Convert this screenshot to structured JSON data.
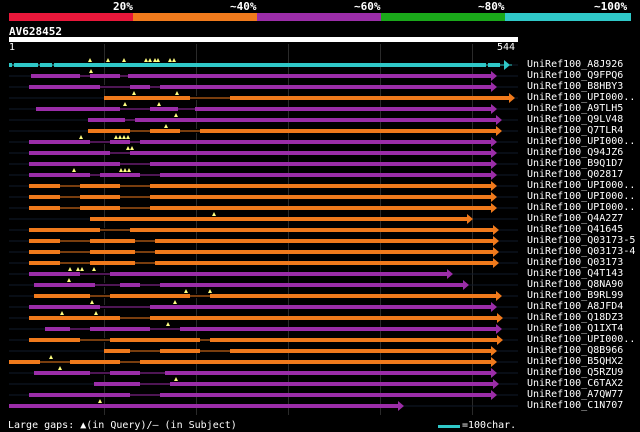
{
  "legend": {
    "labels": [
      "20%",
      "~40%",
      "~60%",
      "~80%",
      "~100%"
    ],
    "colors": [
      "#e8173a",
      "#f07a1c",
      "#9b2da8",
      "#1aa81a",
      "#2fc8c8"
    ]
  },
  "query": {
    "name": "AV628452",
    "start": "1",
    "end": "544"
  },
  "hits": [
    {
      "label": "UniRef100_A8J926",
      "color": "#2fc8c8"
    },
    {
      "label": "UniRef100_Q9FPQ6",
      "color": "#9b2da8"
    },
    {
      "label": "UniRef100_B8HBY3",
      "color": "#9b2da8"
    },
    {
      "label": "UniRef100_UPI000..",
      "color": "#f07a1c"
    },
    {
      "label": "UniRef100_A9TLH5",
      "color": "#9b2da8"
    },
    {
      "label": "UniRef100_Q9LV48",
      "color": "#9b2da8"
    },
    {
      "label": "UniRef100_Q7TLR4",
      "color": "#f07a1c"
    },
    {
      "label": "UniRef100_UPI000..",
      "color": "#9b2da8"
    },
    {
      "label": "UniRef100_Q94JZ6",
      "color": "#9b2da8"
    },
    {
      "label": "UniRef100_B9Q1D7",
      "color": "#9b2da8"
    },
    {
      "label": "UniRef100_Q02817",
      "color": "#9b2da8"
    },
    {
      "label": "UniRef100_UPI000..",
      "color": "#f07a1c"
    },
    {
      "label": "UniRef100_UPI000..",
      "color": "#f07a1c"
    },
    {
      "label": "UniRef100_UPI000..",
      "color": "#f07a1c"
    },
    {
      "label": "UniRef100_Q4A2Z7",
      "color": "#f07a1c"
    },
    {
      "label": "UniRef100_Q41645",
      "color": "#f07a1c"
    },
    {
      "label": "UniRef100_Q03173-5",
      "color": "#f07a1c"
    },
    {
      "label": "UniRef100_Q03173-4",
      "color": "#f07a1c"
    },
    {
      "label": "UniRef100_Q03173",
      "color": "#f07a1c"
    },
    {
      "label": "UniRef100_Q4T143",
      "color": "#9b2da8"
    },
    {
      "label": "UniRef100_Q8NA90",
      "color": "#9b2da8"
    },
    {
      "label": "UniRef100_B9RL99",
      "color": "#f07a1c"
    },
    {
      "label": "UniRef100_A8JFD4",
      "color": "#9b2da8"
    },
    {
      "label": "UniRef100_Q18DZ3",
      "color": "#f07a1c"
    },
    {
      "label": "UniRef100_Q1IXT4",
      "color": "#9b2da8"
    },
    {
      "label": "UniRef100_UPI000..",
      "color": "#f07a1c"
    },
    {
      "label": "UniRef100_Q8B966",
      "color": "#f07a1c"
    },
    {
      "label": "UniRef100_B5QHX2",
      "color": "#f07a1c"
    },
    {
      "label": "UniRef100_Q5RZU9",
      "color": "#9b2da8"
    },
    {
      "label": "UniRef100_C6TAX2",
      "color": "#9b2da8"
    },
    {
      "label": "UniRef100_A7QW77",
      "color": "#9b2da8"
    },
    {
      "label": "UniRef100_C1N707",
      "color": "#9b2da8"
    }
  ],
  "footer": {
    "gaps_text": "Large gaps: ▲(in Query)/– (in Subject)",
    "scale_text": "=100char."
  }
}
